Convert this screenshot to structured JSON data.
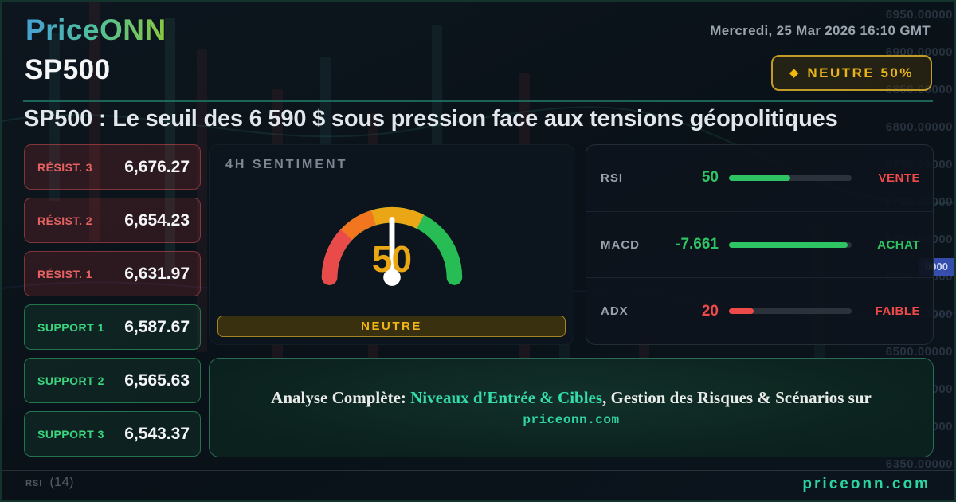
{
  "header": {
    "logo": "PriceONN",
    "datetime": "Mercredi, 25 Mar 2026 16:10 GMT",
    "symbol": "SP500",
    "sentiment_badge": {
      "icon": "diamond",
      "label": "NEUTRE 50%"
    }
  },
  "headline": "SP500 : Le seuil des 6 590 $ sous pression face aux tensions géopolitiques",
  "levels": {
    "resistances": [
      {
        "label": "RÉSIST. 3",
        "value": "6,676.27"
      },
      {
        "label": "RÉSIST. 2",
        "value": "6,654.23"
      },
      {
        "label": "RÉSIST. 1",
        "value": "6,631.97"
      }
    ],
    "supports": [
      {
        "label": "SUPPORT 1",
        "value": "6,587.67"
      },
      {
        "label": "SUPPORT 2",
        "value": "6,565.63"
      },
      {
        "label": "SUPPORT 3",
        "value": "6,543.37"
      }
    ]
  },
  "sentiment_panel": {
    "title": "4H SENTIMENT",
    "gauge_value": "50",
    "status_label": "NEUTRE"
  },
  "indicators": [
    {
      "name": "RSI",
      "value": "50",
      "value_color": "#2fc463",
      "fill_pct": 50,
      "bar_color": "#2fc463",
      "signal": "VENTE",
      "signal_color": "#ef4a4a"
    },
    {
      "name": "MACD",
      "value": "-7.661",
      "value_color": "#2fc463",
      "fill_pct": 97,
      "bar_color": "#2fc463",
      "signal": "ACHAT",
      "signal_color": "#2fc463"
    },
    {
      "name": "ADX",
      "value": "20",
      "value_color": "#ef4a4a",
      "fill_pct": 20,
      "bar_color": "#ef4a4a",
      "signal": "FAIBLE",
      "signal_color": "#ef4a4a"
    }
  ],
  "cta_banner": {
    "prefix": "Analyse Complète: ",
    "highlight": "Niveaux d'Entrée & Cibles",
    "middle": ", Gestion des Risques & Scénarios sur ",
    "site": "priceonn.com"
  },
  "footer": {
    "website": "priceonn.com",
    "chart_label": "RSI",
    "chart_period": "(14)"
  },
  "background": {
    "axis_labels": [
      "6950.00000",
      "6900.00000",
      "6850.00000",
      "6800.00000",
      "6750.00000",
      "6700.00000",
      "6650.00000",
      "6600.00000",
      "6550.00000",
      "6500.00000",
      "6450.00000",
      "6400.00000",
      "6350.00000"
    ],
    "price_tag": "0000"
  },
  "colors": {
    "accent_gold": "#eab015",
    "bull_green": "#2fc463",
    "bear_red": "#ef4a4a",
    "brand_teal": "#2fd3a2",
    "gauge_segments": [
      "#e94b4b",
      "#f2761f",
      "#eaa615",
      "#27bd54"
    ],
    "needle_white": "#ffffff"
  }
}
